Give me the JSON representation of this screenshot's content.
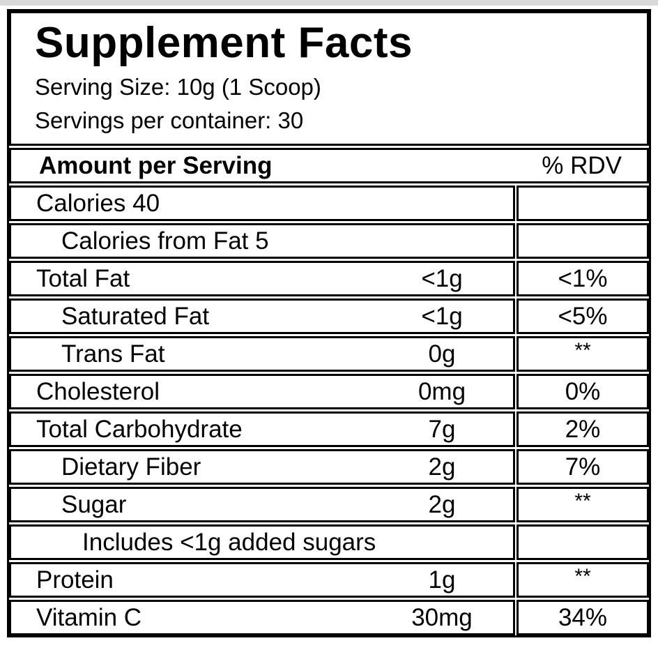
{
  "label": {
    "title": "Supplement Facts",
    "serving_size": "Serving Size: 10g (1 Scoop)",
    "servings_per_container": "Servings per container: 30",
    "columns": {
      "amount_header": "Amount per Serving",
      "rdv_header": "% RDV"
    },
    "rows": [
      {
        "name": "Calories 40",
        "amount": "",
        "rdv": "",
        "indent": 0
      },
      {
        "name": "Calories from Fat 5",
        "amount": "",
        "rdv": "",
        "indent": 1
      },
      {
        "name": "Total Fat",
        "amount": "<1g",
        "rdv": "<1%",
        "indent": 0
      },
      {
        "name": "Saturated Fat",
        "amount": "<1g",
        "rdv": "<5%",
        "indent": 1
      },
      {
        "name": "Trans Fat",
        "amount": "0g",
        "rdv": "**",
        "indent": 1
      },
      {
        "name": "Cholesterol",
        "amount": "0mg",
        "rdv": "0%",
        "indent": 0
      },
      {
        "name": "Total Carbohydrate",
        "amount": "7g",
        "rdv": "2%",
        "indent": 0
      },
      {
        "name": "Dietary Fiber",
        "amount": "2g",
        "rdv": "7%",
        "indent": 1
      },
      {
        "name": "Sugar",
        "amount": "2g",
        "rdv": "**",
        "indent": 1
      },
      {
        "name": "Includes <1g added sugars",
        "amount": "",
        "rdv": "",
        "indent": 2
      },
      {
        "name": "Protein",
        "amount": "1g",
        "rdv": "**",
        "indent": 0
      },
      {
        "name": "Vitamin C",
        "amount": "30mg",
        "rdv": "34%",
        "indent": 0
      }
    ]
  },
  "colors": {
    "border": "#000000",
    "text": "#000000",
    "background": "#ffffff",
    "top_strip": "#d9d9d9"
  }
}
